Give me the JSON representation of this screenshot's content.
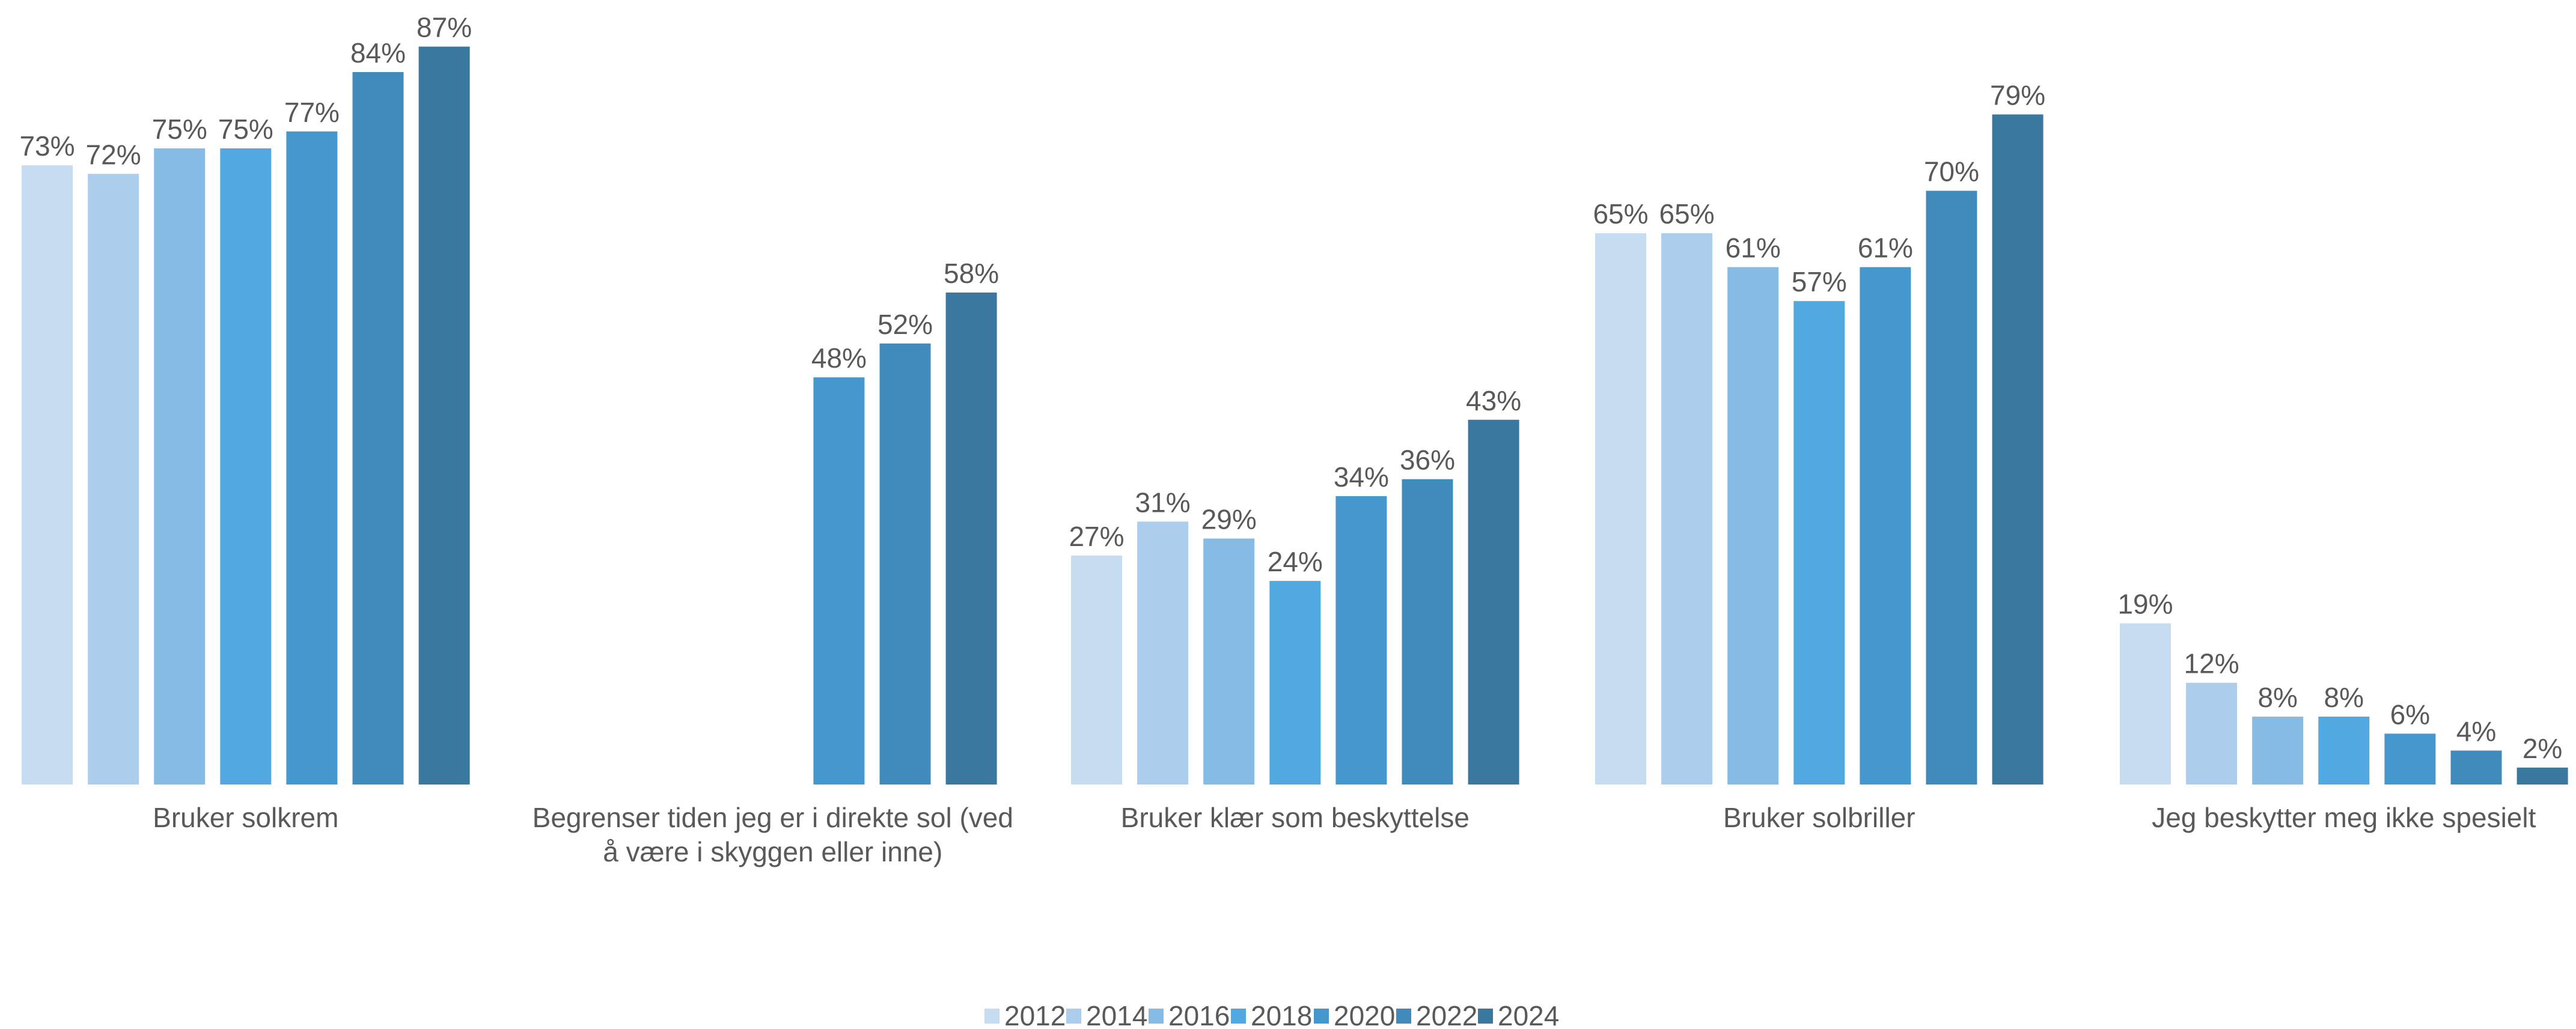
{
  "chart_data": {
    "type": "bar",
    "title": "",
    "xlabel": "",
    "ylabel": "",
    "ylim": [
      0,
      100
    ],
    "grid": false,
    "legend_position": "bottom",
    "value_suffix": "%",
    "categories": [
      [
        "Bruker solkrem"
      ],
      [
        "Begrenser tiden jeg er i direkte sol (ved",
        "å være i skyggen eller inne)"
      ],
      [
        "Bruker klær som beskyttelse"
      ],
      [
        "Bruker solbriller"
      ],
      [
        "Jeg beskytter meg ikke spesielt"
      ]
    ],
    "series": [
      {
        "name": "2012",
        "color": "#c6dcf1",
        "values": [
          73,
          null,
          27,
          65,
          19
        ]
      },
      {
        "name": "2014",
        "color": "#adcdec",
        "values": [
          72,
          null,
          31,
          65,
          12
        ]
      },
      {
        "name": "2016",
        "color": "#86bbe6",
        "values": [
          75,
          null,
          29,
          61,
          8
        ]
      },
      {
        "name": "2018",
        "color": "#52a9e0",
        "values": [
          75,
          null,
          24,
          57,
          8
        ]
      },
      {
        "name": "2020",
        "color": "#4498cd",
        "values": [
          77,
          48,
          34,
          61,
          6
        ]
      },
      {
        "name": "2022",
        "color": "#408bbb",
        "values": [
          84,
          52,
          36,
          70,
          4
        ]
      },
      {
        "name": "2024",
        "color": "#3a78a0",
        "values": [
          87,
          58,
          43,
          79,
          2
        ]
      }
    ]
  }
}
